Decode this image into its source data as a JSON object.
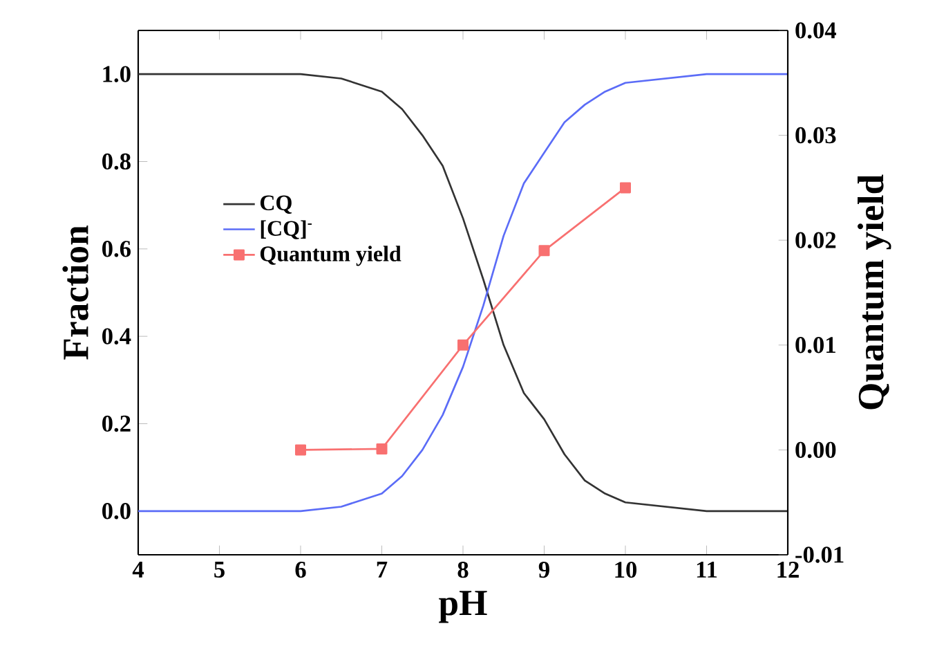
{
  "chart_data": {
    "type": "line",
    "xlabel": "pH",
    "ylabel": "Fraction",
    "y2label": "Quantum yield",
    "xlim": [
      4,
      12
    ],
    "xticks": [
      4,
      5,
      6,
      7,
      8,
      9,
      10,
      11,
      12
    ],
    "ylim": [
      -0.1,
      1.1
    ],
    "yticks": [
      {
        "value": 0,
        "label": "0.0"
      },
      {
        "value": 0.2,
        "label": "0.2"
      },
      {
        "value": 0.4,
        "label": "0.4"
      },
      {
        "value": 0.6,
        "label": "0.6"
      },
      {
        "value": 0.8,
        "label": "0.8"
      },
      {
        "value": 1,
        "label": "1.0"
      }
    ],
    "y2lim": [
      -0.01,
      0.04
    ],
    "y2ticks": [
      {
        "value": -0.01,
        "label": "-0.01"
      },
      {
        "value": 0,
        "label": "0.00"
      },
      {
        "value": 0.01,
        "label": "0.01"
      },
      {
        "value": 0.02,
        "label": "0.02"
      },
      {
        "value": 0.03,
        "label": "0.03"
      },
      {
        "value": 0.04,
        "label": "0.04"
      }
    ],
    "legend": "left",
    "grid": false,
    "series": [
      {
        "name": "CQ",
        "color": "#333333",
        "marker": "none",
        "x": [
          4,
          5,
          6,
          6.5,
          7,
          7.25,
          7.5,
          7.75,
          8,
          8.25,
          8.5,
          8.75,
          9,
          9.25,
          9.5,
          9.75,
          10,
          10.5,
          11,
          12
        ],
        "values": [
          1,
          1,
          1,
          0.99,
          0.96,
          0.92,
          0.86,
          0.79,
          0.67,
          0.53,
          0.38,
          0.27,
          0.21,
          0.13,
          0.07,
          0.04,
          0.02,
          0.01,
          0,
          0
        ]
      },
      {
        "name": "[CQ]$^{-}$",
        "color": "#5b6cf7",
        "marker": "none",
        "x": [
          4,
          5,
          6,
          6.5,
          7,
          7.25,
          7.5,
          7.75,
          8,
          8.25,
          8.5,
          8.75,
          9,
          9.25,
          9.5,
          9.75,
          10,
          10.5,
          11,
          12
        ],
        "values": [
          0,
          0,
          0,
          0.01,
          0.04,
          0.08,
          0.14,
          0.22,
          0.33,
          0.47,
          0.63,
          0.75,
          0.82,
          0.89,
          0.93,
          0.96,
          0.98,
          0.99,
          1,
          1
        ]
      },
      {
        "name": "Quantum yield",
        "color": "#f87070",
        "marker": "square",
        "axis": "y2",
        "x": [
          6,
          7,
          8,
          9,
          10
        ],
        "values": [
          0,
          0.0001,
          0.01,
          0.019,
          0.025
        ]
      }
    ]
  }
}
